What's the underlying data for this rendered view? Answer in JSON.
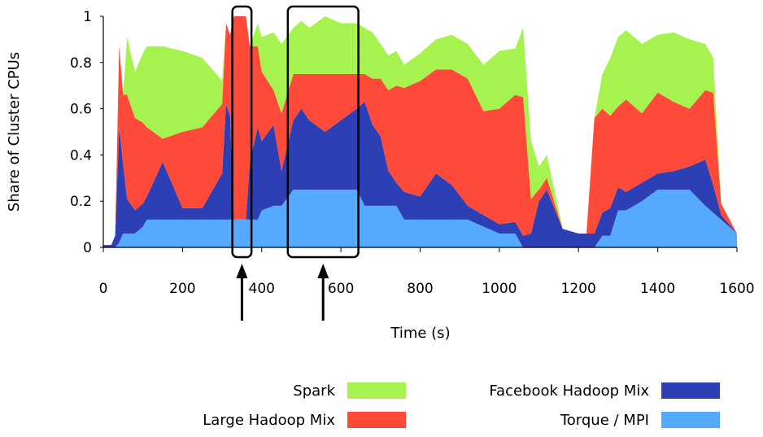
{
  "chart_data": {
    "type": "area",
    "stacked": true,
    "xlabel": "Time (s)",
    "ylabel": "Share of Cluster CPUs",
    "xlim": [
      0,
      1600
    ],
    "ylim": [
      0,
      1
    ],
    "x_ticks": [
      "0",
      "200",
      "400",
      "600",
      "800",
      "1000",
      "1200",
      "1400",
      "1600"
    ],
    "y_ticks": [
      "0",
      "0.2",
      "0.4",
      "0.6",
      "0.8",
      "1"
    ],
    "legend_position": "bottom",
    "colors": {
      "Torque / MPI": "#55aaff",
      "Facebook Hadoop Mix": "#2d3fb5",
      "Large Hadoop Mix": "#ff4a3a",
      "Spark": "#a6f34f"
    },
    "x": [
      0,
      20,
      30,
      40,
      50,
      60,
      80,
      100,
      110,
      150,
      200,
      250,
      300,
      310,
      320,
      330,
      340,
      350,
      360,
      370,
      390,
      400,
      430,
      450,
      480,
      500,
      520,
      560,
      600,
      640,
      660,
      680,
      700,
      720,
      740,
      760,
      800,
      840,
      880,
      920,
      960,
      1000,
      1040,
      1060,
      1080,
      1100,
      1120,
      1160,
      1200,
      1220,
      1240,
      1260,
      1280,
      1300,
      1320,
      1360,
      1400,
      1440,
      1480,
      1520,
      1540,
      1560,
      1600
    ],
    "series": [
      {
        "name": "Torque / MPI",
        "values": [
          0,
          0,
          0,
          0.02,
          0.06,
          0.06,
          0.06,
          0.09,
          0.12,
          0.12,
          0.12,
          0.12,
          0.12,
          0.12,
          0.12,
          0.12,
          0.12,
          0.12,
          0.12,
          0.12,
          0.12,
          0.16,
          0.18,
          0.18,
          0.25,
          0.25,
          0.25,
          0.25,
          0.25,
          0.25,
          0.18,
          0.18,
          0.18,
          0.18,
          0.18,
          0.12,
          0.12,
          0.12,
          0.12,
          0.12,
          0.09,
          0.06,
          0.06,
          0,
          0,
          0,
          0,
          0,
          0,
          0,
          0,
          0.05,
          0.05,
          0.16,
          0.16,
          0.2,
          0.25,
          0.25,
          0.25,
          0.18,
          0.15,
          0.12,
          0.06
        ]
      },
      {
        "name": "Facebook Hadoop Mix",
        "values": [
          0.01,
          0.01,
          0.05,
          0.5,
          0.3,
          0.15,
          0.1,
          0.1,
          0.1,
          0.25,
          0.05,
          0.05,
          0.2,
          0.5,
          0.45,
          0,
          0,
          0,
          0,
          0.25,
          0.4,
          0.3,
          0.35,
          0.15,
          0.3,
          0.35,
          0.3,
          0.25,
          0.3,
          0.35,
          0.45,
          0.35,
          0.3,
          0.15,
          0.1,
          0.12,
          0.1,
          0.2,
          0.15,
          0.06,
          0.05,
          0.04,
          0.05,
          0.05,
          0.06,
          0.2,
          0.25,
          0.08,
          0.06,
          0.06,
          0.06,
          0.1,
          0.12,
          0.1,
          0.08,
          0.08,
          0.07,
          0.08,
          0.1,
          0.2,
          0.12,
          0.02,
          0
        ]
      },
      {
        "name": "Large Hadoop Mix",
        "values": [
          0,
          0,
          0,
          0.35,
          0.3,
          0.45,
          0.4,
          0.35,
          0.3,
          0.1,
          0.33,
          0.35,
          0.3,
          0.35,
          0.35,
          0.88,
          0.88,
          0.88,
          0.88,
          0.5,
          0.35,
          0.3,
          0.15,
          0.25,
          0.2,
          0.15,
          0.2,
          0.25,
          0.2,
          0.15,
          0.12,
          0.2,
          0.25,
          0.35,
          0.42,
          0.45,
          0.5,
          0.45,
          0.5,
          0.55,
          0.45,
          0.5,
          0.55,
          0.6,
          0.15,
          0.05,
          0.05,
          0,
          0,
          0,
          0.5,
          0.45,
          0.4,
          0.35,
          0.4,
          0.3,
          0.35,
          0.3,
          0.25,
          0.3,
          0.4,
          0.05,
          0
        ]
      },
      {
        "name": "Spark",
        "values": [
          0,
          0,
          0,
          0,
          0,
          0.25,
          0.2,
          0.3,
          0.35,
          0.4,
          0.35,
          0.3,
          0.1,
          0,
          0,
          0,
          0,
          0,
          0,
          0,
          0.1,
          0.15,
          0.25,
          0.3,
          0.2,
          0.23,
          0.2,
          0.25,
          0.22,
          0.22,
          0.2,
          0.2,
          0.15,
          0.15,
          0.15,
          0.1,
          0.12,
          0.13,
          0.15,
          0.15,
          0.2,
          0.25,
          0.2,
          0.3,
          0.25,
          0.1,
          0.1,
          0,
          0,
          0,
          0,
          0.15,
          0.25,
          0.3,
          0.3,
          0.3,
          0.25,
          0.3,
          0.3,
          0.2,
          0.15,
          0,
          0
        ]
      }
    ],
    "annotations": [
      {
        "type": "highlight-box",
        "x_range": [
          330,
          370
        ],
        "marker": "up-arrow"
      },
      {
        "type": "highlight-box",
        "x_range": [
          470,
          640
        ],
        "marker": "up-arrow"
      }
    ]
  }
}
